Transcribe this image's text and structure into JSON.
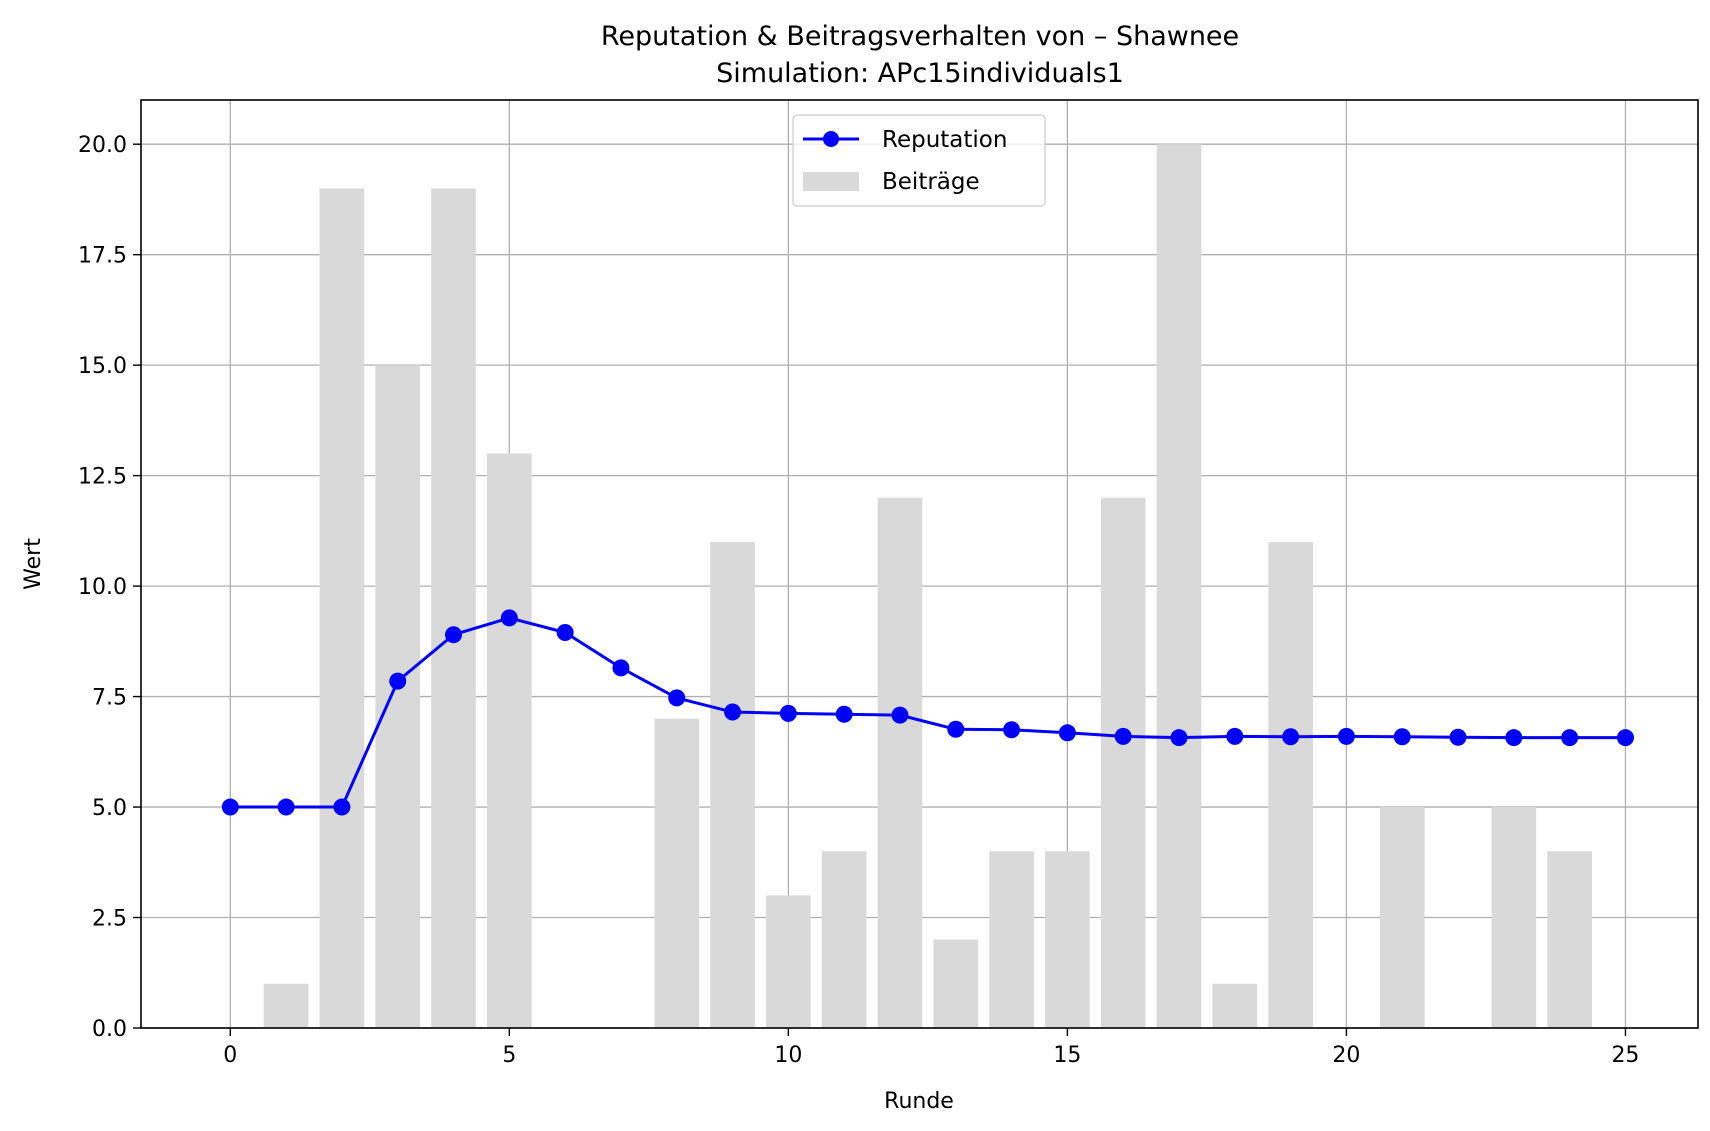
{
  "chart_data": {
    "type": "bar+line",
    "title": "Reputation & Beitragsverhalten von – Shawnee",
    "subtitle": "Simulation: APc15individuals1",
    "xlabel": "Runde",
    "ylabel": "Wert",
    "xlim": [
      -1.6,
      26.3
    ],
    "ylim": [
      0,
      21
    ],
    "xticks": [
      0,
      5,
      10,
      15,
      20,
      25
    ],
    "yticks": [
      0.0,
      2.5,
      5.0,
      7.5,
      10.0,
      12.5,
      15.0,
      17.5,
      20.0
    ],
    "grid": true,
    "legend_position": "top-center",
    "series": [
      {
        "name": "Reputation",
        "kind": "line",
        "color": "#0000ff",
        "x": [
          0,
          1,
          2,
          3,
          4,
          5,
          6,
          7,
          8,
          9,
          10,
          11,
          12,
          13,
          14,
          15,
          16,
          17,
          18,
          19,
          20,
          21,
          22,
          23,
          24,
          25
        ],
        "values": [
          5.0,
          5.0,
          5.0,
          7.85,
          8.9,
          9.28,
          8.95,
          8.15,
          7.47,
          7.15,
          7.12,
          7.1,
          7.08,
          6.76,
          6.75,
          6.68,
          6.6,
          6.57,
          6.6,
          6.59,
          6.6,
          6.59,
          6.58,
          6.57,
          6.57,
          6.57
        ]
      },
      {
        "name": "Beiträge",
        "kind": "bar",
        "color": "#d9d9d9",
        "x": [
          0,
          1,
          2,
          3,
          4,
          5,
          6,
          7,
          8,
          9,
          10,
          11,
          12,
          13,
          14,
          15,
          16,
          17,
          18,
          19,
          20,
          21,
          22,
          23,
          24,
          25
        ],
        "values": [
          0,
          1,
          19,
          15,
          19,
          13,
          0,
          0,
          7,
          11,
          3,
          4,
          12,
          2,
          4,
          4,
          12,
          20,
          1,
          11,
          0,
          5,
          0,
          5,
          4,
          0
        ]
      }
    ]
  }
}
